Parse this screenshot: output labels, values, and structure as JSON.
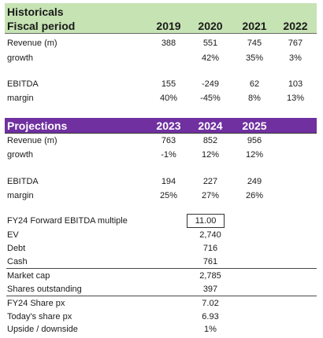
{
  "historicals": {
    "title": "Historicals",
    "subtitle": "Fiscal period",
    "years": [
      "2019",
      "2020",
      "2021",
      "2022"
    ],
    "revenue_label": "Revenue (m)",
    "revenue": [
      "388",
      "551",
      "745",
      "767"
    ],
    "growth_label": "growth",
    "growth": [
      "",
      "42%",
      "35%",
      "3%"
    ],
    "ebitda_label": "EBITDA",
    "ebitda": [
      "155",
      "-249",
      "62",
      "103"
    ],
    "margin_label": "margin",
    "margin": [
      "40%",
      "-45%",
      "8%",
      "13%"
    ]
  },
  "projections": {
    "title": "Projections",
    "years": [
      "2023",
      "2024",
      "2025"
    ],
    "revenue_label": "Revenue (m)",
    "revenue": [
      "763",
      "852",
      "956"
    ],
    "growth_label": "growth",
    "growth": [
      "-1%",
      "12%",
      "12%"
    ],
    "ebitda_label": "EBITDA",
    "ebitda": [
      "194",
      "227",
      "249"
    ],
    "margin_label": "margin",
    "margin": [
      "25%",
      "27%",
      "26%"
    ]
  },
  "valuation": {
    "multiple_label": "FY24 Forward EBITDA multiple",
    "multiple": "11.00",
    "ev_label": "EV",
    "ev": "2,740",
    "debt_label": "Debt",
    "debt": "716",
    "cash_label": "Cash",
    "cash": "761",
    "market_cap_label": "Market cap",
    "market_cap": "2,785",
    "shares_label": "Shares outstanding",
    "shares": "397",
    "fy24_px_label": "FY24 Share px",
    "fy24_px": "7.02",
    "today_px_label": "Today's share px",
    "today_px": "6.93",
    "upside_label": "Upside / downside",
    "upside": "1%"
  },
  "colors": {
    "historicals_header": "#c6e3b3",
    "projections_header": "#7030a0"
  }
}
